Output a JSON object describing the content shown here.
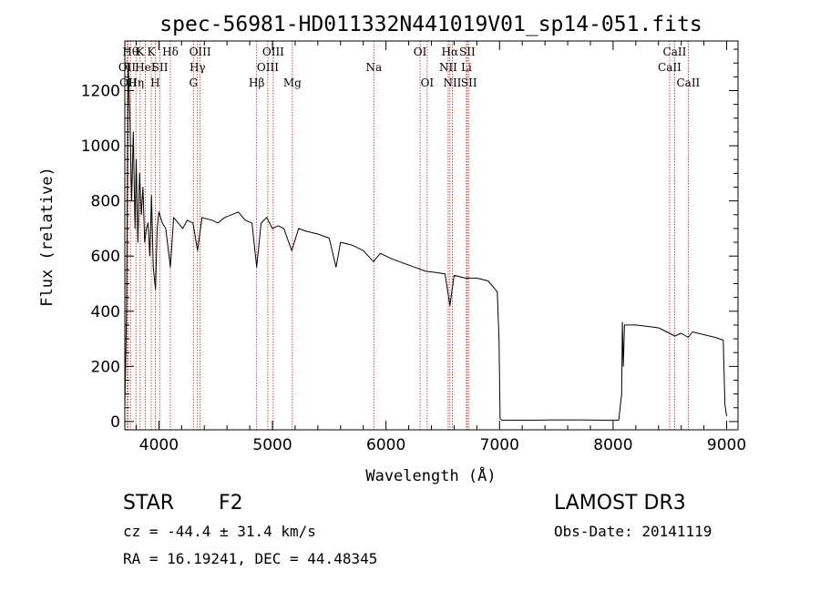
{
  "chart_data": {
    "type": "line",
    "title": "spec-56981-HD011332N441019V01_sp14-051.fits",
    "xlabel": "Wavelength (Å)",
    "ylabel": "Flux (relative)",
    "xlim": [
      3700,
      9100
    ],
    "ylim": [
      -30,
      1380
    ],
    "x_ticks": [
      4000,
      5000,
      6000,
      7000,
      8000,
      9000
    ],
    "y_ticks": [
      0,
      200,
      400,
      600,
      800,
      1000,
      1200
    ],
    "x_tick_labels": [
      "4000",
      "5000",
      "6000",
      "7000",
      "8000",
      "9000"
    ],
    "y_tick_labels": [
      "0",
      "200",
      "400",
      "600",
      "800",
      "1000",
      "1200"
    ],
    "grid": false,
    "series": [
      {
        "name": "spectrum",
        "x": [
          3700,
          3715,
          3730,
          3745,
          3760,
          3775,
          3790,
          3800,
          3815,
          3830,
          3845,
          3860,
          3875,
          3890,
          3905,
          3920,
          3935,
          3950,
          3965,
          3970,
          3985,
          4000,
          4030,
          4060,
          4101,
          4130,
          4170,
          4210,
          4250,
          4300,
          4340,
          4380,
          4420,
          4470,
          4520,
          4580,
          4640,
          4700,
          4760,
          4820,
          4861,
          4900,
          4950,
          5000,
          5050,
          5100,
          5170,
          5230,
          5300,
          5400,
          5500,
          5560,
          5600,
          5700,
          5800,
          5890,
          5950,
          6050,
          6150,
          6250,
          6350,
          6450,
          6520,
          6563,
          6600,
          6700,
          6800,
          6900,
          6980,
          6995,
          7005,
          7020,
          7100,
          7300,
          7500,
          7700,
          7900,
          8050,
          8075,
          8082,
          8090,
          8100,
          8200,
          8300,
          8400,
          8498,
          8542,
          8600,
          8662,
          8700,
          8800,
          8900,
          8970,
          8985,
          9000
        ],
        "values": [
          50,
          400,
          1300,
          1100,
          800,
          1050,
          700,
          950,
          650,
          900,
          750,
          850,
          650,
          700,
          720,
          600,
          820,
          560,
          500,
          480,
          700,
          760,
          720,
          700,
          560,
          740,
          720,
          700,
          730,
          720,
          620,
          740,
          735,
          730,
          720,
          740,
          750,
          760,
          730,
          720,
          560,
          720,
          740,
          700,
          710,
          700,
          620,
          700,
          690,
          680,
          665,
          560,
          650,
          640,
          620,
          580,
          610,
          590,
          575,
          560,
          545,
          540,
          535,
          420,
          530,
          520,
          520,
          510,
          470,
          300,
          10,
          5,
          5,
          5,
          6,
          6,
          5,
          5,
          100,
          360,
          200,
          350,
          350,
          345,
          340,
          320,
          310,
          320,
          305,
          325,
          315,
          305,
          295,
          60,
          20
        ]
      }
    ],
    "line_markers": [
      {
        "wavelength": 3720,
        "row": 1,
        "label": "OII"
      },
      {
        "wavelength": 3730,
        "row": 2,
        "label": "OII"
      },
      {
        "wavelength": 3750,
        "row": 0,
        "label": "Hθ"
      },
      {
        "wavelength": 3798,
        "row": 2,
        "label": "Hη"
      },
      {
        "wavelength": 3835,
        "row": 0,
        "label": "K"
      },
      {
        "wavelength": 3880,
        "row": 1,
        "label": "HeI"
      },
      {
        "wavelength": 3933,
        "row": 0,
        "label": "K"
      },
      {
        "wavelength": 3968,
        "row": 2,
        "label": "H"
      },
      {
        "wavelength": 4010,
        "row": 1,
        "label": "SII"
      },
      {
        "wavelength": 4101,
        "row": 0,
        "label": "Hδ"
      },
      {
        "wavelength": 4304,
        "row": 2,
        "label": "G"
      },
      {
        "wavelength": 4340,
        "row": 1,
        "label": "Hγ"
      },
      {
        "wavelength": 4363,
        "row": 0,
        "label": "OIII"
      },
      {
        "wavelength": 4861,
        "row": 2,
        "label": "Hβ"
      },
      {
        "wavelength": 4959,
        "row": 1,
        "label": "OIII"
      },
      {
        "wavelength": 5007,
        "row": 0,
        "label": "OIII"
      },
      {
        "wavelength": 5175,
        "row": 2,
        "label": "Mg"
      },
      {
        "wavelength": 5893,
        "row": 1,
        "label": "Na"
      },
      {
        "wavelength": 6300,
        "row": 0,
        "label": "OI"
      },
      {
        "wavelength": 6363,
        "row": 2,
        "label": "OI"
      },
      {
        "wavelength": 6548,
        "row": 1,
        "label": "NII"
      },
      {
        "wavelength": 6563,
        "row": 0,
        "label": "Hα"
      },
      {
        "wavelength": 6584,
        "row": 2,
        "label": "NII"
      },
      {
        "wavelength": 6708,
        "row": 1,
        "label": "Li"
      },
      {
        "wavelength": 6716,
        "row": 0,
        "label": "SII"
      },
      {
        "wavelength": 6731,
        "row": 2,
        "label": "SII"
      },
      {
        "wavelength": 8498,
        "row": 1,
        "label": "CaII"
      },
      {
        "wavelength": 8542,
        "row": 0,
        "label": "CaII"
      },
      {
        "wavelength": 8662,
        "row": 2,
        "label": "CaII"
      }
    ],
    "colors": {
      "spectrum": "#000000",
      "marker": "#b22222",
      "axes": "#000000"
    }
  },
  "footer": {
    "object_class": "STAR",
    "subclass": "F2",
    "survey": "LAMOST DR3",
    "cz": "cz = -44.4 ± 31.4 km/s",
    "obs_date": "Obs-Date: 20141119",
    "coords": "RA =  16.19241, DEC =  44.48345"
  }
}
